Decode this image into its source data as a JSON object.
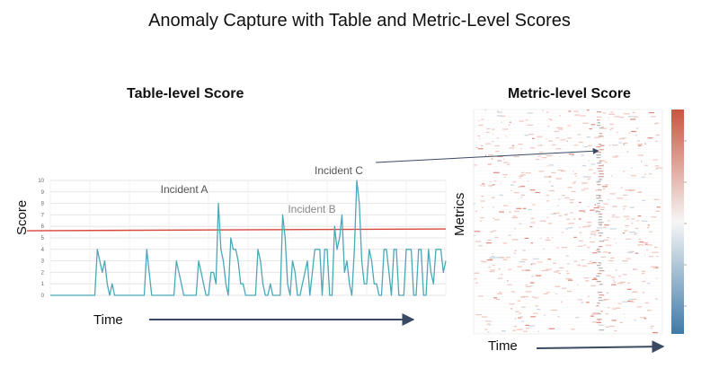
{
  "title": "Anomaly Capture with Table and Metric-Level Scores",
  "table_panel": {
    "title": "Table-level Score",
    "ylabel": "Score",
    "xlabel": "Time"
  },
  "metric_panel": {
    "title": "Metric-level Score",
    "ylabel": "Metrics",
    "xlabel": "Time"
  },
  "colors": {
    "series": "#4aa8b8",
    "threshold": "#d9473a",
    "grid": "#e6e6e6",
    "arrow": "#3b4a63",
    "heat_high": "#c9553f",
    "heat_low": "#3f7aa8"
  },
  "chart_data": {
    "type": "line",
    "title": "Table-level Score",
    "xlabel": "Time",
    "ylabel": "Score",
    "ylim": [
      0,
      10
    ],
    "yticks": [
      "0",
      "1",
      "2",
      "3",
      "4",
      "5",
      "6",
      "7",
      "8",
      "9",
      "10"
    ],
    "grid": true,
    "threshold": 5.7,
    "series": [
      {
        "values": [
          0,
          0,
          0,
          0,
          0,
          0,
          0,
          0,
          0,
          0,
          0,
          0,
          0,
          0,
          0,
          0,
          0,
          0,
          0,
          4,
          3,
          2,
          3,
          1,
          0,
          1,
          0,
          0,
          0,
          0,
          0,
          0,
          0,
          0,
          0,
          0,
          0,
          0,
          0,
          4,
          2,
          0,
          0,
          0,
          0,
          0,
          0,
          0,
          0,
          0,
          0,
          3,
          2,
          1,
          0,
          0,
          0,
          0,
          0,
          0,
          3,
          2,
          1,
          0,
          0,
          2,
          2,
          1,
          8,
          4,
          3,
          1,
          0,
          5,
          4,
          4,
          3,
          1,
          1,
          0,
          0,
          0,
          0,
          0,
          4,
          3,
          1,
          0,
          0,
          1,
          0,
          0,
          0,
          0,
          7,
          5,
          1,
          0,
          3,
          2,
          0,
          0,
          1,
          2,
          3,
          0,
          2,
          4,
          4,
          4,
          0,
          4,
          4,
          0,
          0,
          6,
          4,
          5,
          7,
          2,
          3,
          1,
          0,
          4,
          10,
          8,
          3,
          1,
          1,
          4,
          3,
          1,
          1,
          0,
          0,
          4,
          4,
          2,
          0,
          4,
          4,
          0,
          0,
          0,
          4,
          4,
          4,
          0,
          0,
          4,
          4,
          0,
          0,
          4,
          2,
          1,
          4,
          4,
          4,
          2,
          3
        ]
      }
    ],
    "annotations": [
      {
        "label": "Incident A",
        "x": 68
      },
      {
        "label": "Incident B",
        "x": 120
      },
      {
        "label": "Incident C",
        "x": 124
      }
    ]
  },
  "heatmap": {
    "type": "heatmap",
    "title": "Metric-level Score",
    "xlabel": "Time",
    "ylabel": "Metrics"
  }
}
